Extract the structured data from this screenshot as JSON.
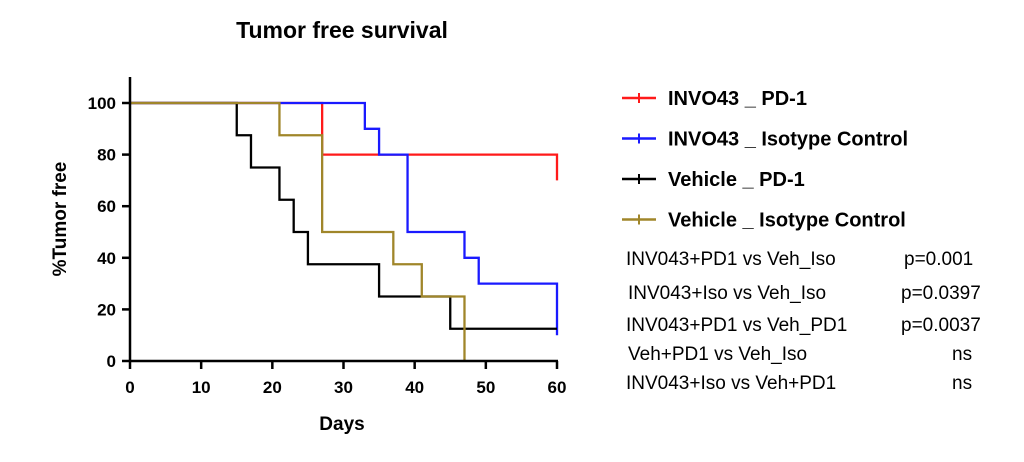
{
  "chart_data": {
    "type": "line",
    "step": true,
    "title": "Tumor free survival",
    "xlabel": "Days",
    "ylabel": "%Tumor free",
    "xlim": [
      0,
      60
    ],
    "ylim": [
      0,
      110
    ],
    "xticks": [
      0,
      10,
      20,
      30,
      40,
      50,
      60
    ],
    "yticks": [
      0,
      20,
      40,
      60,
      80,
      100
    ],
    "legend_position": "right",
    "series": [
      {
        "name": "INVO43 _ PD-1",
        "color": "#ff1a1a",
        "x": [
          0,
          27,
          60
        ],
        "y": [
          100,
          80,
          70
        ]
      },
      {
        "name": "INVO43 _ Isotype Control",
        "color": "#1a1aff",
        "x": [
          0,
          33,
          35,
          39,
          47,
          49,
          60
        ],
        "y": [
          100,
          90,
          80,
          50,
          40,
          30,
          10
        ]
      },
      {
        "name": "Vehicle _ PD-1",
        "color": "#000000",
        "x": [
          0,
          15,
          17,
          21,
          23,
          25,
          35,
          45
        ],
        "y": [
          100,
          87.5,
          75,
          62.5,
          50,
          37.5,
          25,
          12.5
        ],
        "x_end": 60
      },
      {
        "name": "Vehicle _ Isotype Control",
        "color": "#a0862a",
        "x": [
          0,
          21,
          27,
          37,
          41,
          47
        ],
        "y": [
          100,
          87.5,
          50,
          37.5,
          25,
          0
        ]
      }
    ],
    "annotations": [
      {
        "label": "INV043+PD1 vs Veh_Iso",
        "value": "p=0.001"
      },
      {
        "label": "INV043+Iso vs Veh_Iso",
        "value": "p=0.0397"
      },
      {
        "label": "INV043+PD1 vs Veh_PD1",
        "value": "p=0.0037"
      },
      {
        "label": "Veh+PD1 vs Veh_Iso",
        "value": "ns"
      },
      {
        "label": "INV043+Iso vs Veh+PD1",
        "value": "ns"
      }
    ]
  }
}
